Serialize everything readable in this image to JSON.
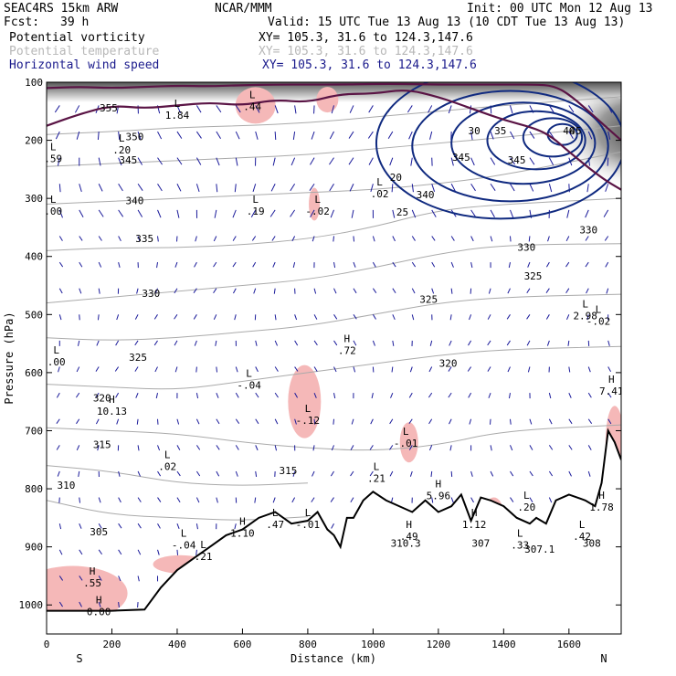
{
  "header": {
    "line1_left": "SEAC4RS 15km ARW",
    "line1_center": "NCAR/MMM",
    "line1_right": "Init: 00 UTC Mon 12 Aug 13",
    "fcst_label": "Fcst:",
    "fcst_value": "39 h",
    "valid": "Valid: 15 UTC Tue 13 Aug 13 (10 CDT Tue 13 Aug 13)"
  },
  "legend": [
    {
      "name": "Potential vorticity",
      "xy": "XY= 105.3, 31.6 to 124.3,147.6",
      "color": "#000000",
      "xy_color": "#000000"
    },
    {
      "name": "Potential temperature",
      "xy": "XY= 105.3, 31.6 to 124.3,147.6",
      "color": "#b8b8b8",
      "xy_color": "#b8b8b8"
    },
    {
      "name": "Horizontal wind speed",
      "xy": "XY= 105.3, 31.6 to 124.3,147.6",
      "color": "#1a1a8c",
      "xy_color": "#1a1a8c"
    }
  ],
  "colors": {
    "pv": "#5a1445",
    "theta": "#aaaaaa",
    "wind": "#102a80",
    "vectors": "#1a1a9a",
    "pv_shading": "#f5b8b8",
    "terrain": "#000000",
    "label": "#2a1858"
  },
  "chart_data": {
    "type": "cross-section",
    "xlabel": "Distance (km)",
    "ylabel": "Pressure (hPa)",
    "xlim": [
      0,
      1760
    ],
    "ylim": [
      1050,
      100
    ],
    "xticks": [
      0,
      200,
      400,
      600,
      800,
      1000,
      1200,
      1400,
      1600
    ],
    "yticks": [
      100,
      200,
      300,
      400,
      500,
      600,
      700,
      800,
      900,
      1000
    ],
    "end_labels": {
      "left": "S",
      "right": "N"
    },
    "terrain": {
      "distance_km": [
        0,
        100,
        200,
        300,
        350,
        400,
        450,
        500,
        550,
        600,
        650,
        700,
        750,
        800,
        830,
        860,
        880,
        900,
        920,
        940,
        970,
        1000,
        1040,
        1080,
        1120,
        1160,
        1200,
        1240,
        1270,
        1300,
        1330,
        1360,
        1400,
        1440,
        1480,
        1500,
        1530,
        1560,
        1600,
        1650,
        1680,
        1700,
        1720,
        1740,
        1760
      ],
      "pressure_hpa": [
        1010,
        1010,
        1010,
        1008,
        970,
        940,
        920,
        900,
        880,
        870,
        850,
        840,
        860,
        855,
        840,
        870,
        880,
        900,
        850,
        850,
        820,
        805,
        820,
        830,
        840,
        820,
        840,
        830,
        810,
        855,
        815,
        820,
        830,
        850,
        860,
        850,
        860,
        820,
        810,
        820,
        830,
        790,
        700,
        720,
        750
      ]
    },
    "pv_contours": [
      {
        "value": 2,
        "pressure_hpa_along_section": [
          175,
          155,
          140,
          145,
          140,
          135,
          140,
          130,
          135,
          120,
          120,
          112,
          125,
          145,
          165,
          180,
          195,
          220,
          265,
          285
        ]
      },
      {
        "value": 5,
        "pressure_hpa_along_section": [
          110,
          108,
          110,
          108,
          106,
          107,
          105,
          104,
          104,
          104,
          103,
          103,
          104,
          104,
          104,
          104,
          106,
          120,
          170,
          200
        ]
      }
    ],
    "pv_contour_distances_km": [
      0,
      100,
      200,
      300,
      400,
      500,
      600,
      700,
      800,
      900,
      1000,
      1100,
      1200,
      1300,
      1400,
      1500,
      1550,
      1600,
      1700,
      1760
    ],
    "theta_contours": [
      {
        "value": 305,
        "pressure_hpa": [
          820,
          845,
          850,
          855,
          848
        ]
      },
      {
        "value": 310,
        "pressure_hpa": [
          760,
          770,
          790,
          795,
          790
        ]
      },
      {
        "value": 315,
        "pressure_hpa": [
          695,
          700,
          705,
          720,
          730,
          735,
          725,
          700,
          690
        ]
      },
      {
        "value": 320,
        "pressure_hpa": [
          620,
          625,
          630,
          615,
          600,
          585,
          570,
          560,
          555
        ]
      },
      {
        "value": 325,
        "pressure_hpa": [
          540,
          545,
          540,
          530,
          520,
          500,
          480,
          470,
          465
        ]
      },
      {
        "value": 330,
        "pressure_hpa": [
          480,
          470,
          460,
          450,
          440,
          420,
          395,
          380,
          378
        ]
      },
      {
        "value": 335,
        "pressure_hpa": [
          390,
          385,
          385,
          380,
          370,
          350,
          320,
          310,
          300
        ]
      },
      {
        "value": 340,
        "pressure_hpa": [
          310,
          305,
          300,
          295,
          290,
          285,
          275,
          260,
          220
        ]
      },
      {
        "value": 345,
        "pressure_hpa": [
          245,
          240,
          235,
          230,
          225,
          215,
          205,
          195,
          175
        ]
      },
      {
        "value": 350,
        "pressure_hpa": [
          190,
          185,
          178,
          175,
          170,
          160,
          150,
          140,
          125
        ]
      }
    ],
    "theta_distances_km": [
      0,
      200,
      400,
      600,
      800,
      1000,
      1200,
      1400,
      1760
    ],
    "wind_speed_contours": [
      {
        "value": 20,
        "label_distance_km": 1070,
        "label_pressure_hpa": 270
      },
      {
        "value": 25,
        "label_distance_km": 1090,
        "label_pressure_hpa": 330
      },
      {
        "value": 30,
        "label_distance_km": 1310,
        "label_pressure_hpa": 190
      },
      {
        "value": 35,
        "label_distance_km": 1390,
        "label_pressure_hpa": 190
      },
      {
        "value": 40,
        "label_distance_km": 1600,
        "label_pressure_hpa": 190
      },
      {
        "value": 45,
        "label_distance_km": 1620,
        "label_pressure_hpa": 190
      }
    ],
    "extrema_labels": [
      {
        "kind": "L",
        "value": "1.84",
        "distance_km": 400,
        "pressure_hpa": 155
      },
      {
        "kind": "L",
        "value": ".44",
        "distance_km": 630,
        "pressure_hpa": 140
      },
      {
        "kind": "L",
        "value": ".20",
        "distance_km": 230,
        "pressure_hpa": 215
      },
      {
        "kind": "L",
        "value": ".19",
        "distance_km": 640,
        "pressure_hpa": 320
      },
      {
        "kind": "L",
        "value": "-.02",
        "distance_km": 830,
        "pressure_hpa": 320
      },
      {
        "kind": "L",
        "value": ".02",
        "distance_km": 1020,
        "pressure_hpa": 290
      },
      {
        "kind": "L",
        "value": ".59",
        "distance_km": 20,
        "pressure_hpa": 230
      },
      {
        "kind": "L",
        "value": ".00",
        "distance_km": 20,
        "pressure_hpa": 320
      },
      {
        "kind": "L",
        "value": "2.98",
        "distance_km": 1650,
        "pressure_hpa": 500
      },
      {
        "kind": "L",
        "value": "-.02",
        "distance_km": 1690,
        "pressure_hpa": 510
      },
      {
        "kind": "L",
        "value": ".00",
        "distance_km": 30,
        "pressure_hpa": 580
      },
      {
        "kind": "H",
        "value": ".72",
        "distance_km": 920,
        "pressure_hpa": 560
      },
      {
        "kind": "L",
        "value": "-.04",
        "distance_km": 620,
        "pressure_hpa": 620
      },
      {
        "kind": "H",
        "value": "7.41",
        "distance_km": 1730,
        "pressure_hpa": 630
      },
      {
        "kind": "H",
        "value": "10.13",
        "distance_km": 200,
        "pressure_hpa": 665
      },
      {
        "kind": "L",
        "value": "-.12",
        "distance_km": 800,
        "pressure_hpa": 680
      },
      {
        "kind": "L",
        "value": "-.01",
        "distance_km": 1100,
        "pressure_hpa": 720
      },
      {
        "kind": "L",
        "value": ".02",
        "distance_km": 370,
        "pressure_hpa": 760
      },
      {
        "kind": "L",
        "value": ".21",
        "distance_km": 1010,
        "pressure_hpa": 780
      },
      {
        "kind": "H",
        "value": "5.96",
        "distance_km": 1200,
        "pressure_hpa": 810
      },
      {
        "kind": "L",
        "value": ".20",
        "distance_km": 1470,
        "pressure_hpa": 830
      },
      {
        "kind": "H",
        "value": "1.78",
        "distance_km": 1700,
        "pressure_hpa": 830
      },
      {
        "kind": "L",
        "value": ".47",
        "distance_km": 700,
        "pressure_hpa": 860
      },
      {
        "kind": "L",
        "value": "-.01",
        "distance_km": 800,
        "pressure_hpa": 860
      },
      {
        "kind": "H",
        "value": "1.12",
        "distance_km": 1310,
        "pressure_hpa": 860
      },
      {
        "kind": "H",
        "value": ".49",
        "distance_km": 1110,
        "pressure_hpa": 880
      },
      {
        "kind": "H",
        "value": "1.10",
        "distance_km": 600,
        "pressure_hpa": 875
      },
      {
        "kind": "L",
        "value": ".42",
        "distance_km": 1640,
        "pressure_hpa": 880
      },
      {
        "kind": "L",
        "value": "-.04",
        "distance_km": 420,
        "pressure_hpa": 895
      },
      {
        "kind": "L",
        "value": ".33",
        "distance_km": 1450,
        "pressure_hpa": 895
      },
      {
        "kind": "L",
        "value": ".21",
        "distance_km": 480,
        "pressure_hpa": 915
      },
      {
        "kind": "H",
        "value": ".55",
        "distance_km": 140,
        "pressure_hpa": 960
      },
      {
        "kind": "H",
        "value": "0.00",
        "distance_km": 160,
        "pressure_hpa": 1010
      }
    ],
    "theta_labels": [
      {
        "text": "305",
        "distance_km": 160,
        "pressure_hpa": 880
      },
      {
        "text": "310",
        "distance_km": 60,
        "pressure_hpa": 800
      },
      {
        "text": "315",
        "distance_km": 170,
        "pressure_hpa": 730
      },
      {
        "text": "315",
        "distance_km": 740,
        "pressure_hpa": 775
      },
      {
        "text": "320",
        "distance_km": 170,
        "pressure_hpa": 650
      },
      {
        "text": "320",
        "distance_km": 1230,
        "pressure_hpa": 590
      },
      {
        "text": "325",
        "distance_km": 280,
        "pressure_hpa": 580
      },
      {
        "text": "325",
        "distance_km": 1170,
        "pressure_hpa": 480
      },
      {
        "text": "325",
        "distance_km": 1490,
        "pressure_hpa": 440
      },
      {
        "text": "330",
        "distance_km": 320,
        "pressure_hpa": 470
      },
      {
        "text": "330",
        "distance_km": 1470,
        "pressure_hpa": 390
      },
      {
        "text": "330",
        "distance_km": 1660,
        "pressure_hpa": 360
      },
      {
        "text": "335",
        "distance_km": 300,
        "pressure_hpa": 375
      },
      {
        "text": "340",
        "distance_km": 270,
        "pressure_hpa": 310
      },
      {
        "text": "340",
        "distance_km": 1160,
        "pressure_hpa": 300
      },
      {
        "text": "345",
        "distance_km": 250,
        "pressure_hpa": 240
      },
      {
        "text": "345",
        "distance_km": 1270,
        "pressure_hpa": 235
      },
      {
        "text": "345",
        "distance_km": 1440,
        "pressure_hpa": 240
      },
      {
        "text": "350",
        "distance_km": 270,
        "pressure_hpa": 200
      },
      {
        "text": "355",
        "distance_km": 190,
        "pressure_hpa": 150
      },
      {
        "text": "310.3",
        "distance_km": 1100,
        "pressure_hpa": 900
      },
      {
        "text": "307",
        "distance_km": 1330,
        "pressure_hpa": 900
      },
      {
        "text": "307.1",
        "distance_km": 1510,
        "pressure_hpa": 910
      },
      {
        "text": "308",
        "distance_km": 1670,
        "pressure_hpa": 900
      }
    ]
  }
}
